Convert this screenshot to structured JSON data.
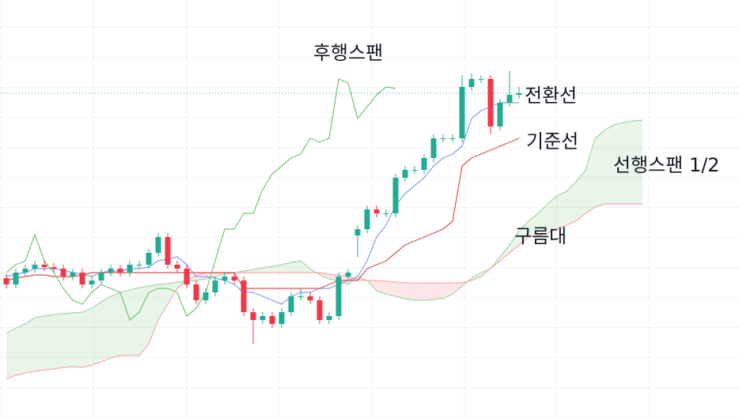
{
  "chart_data": {
    "type": "ichimoku",
    "ylim": [
      0,
      530
    ],
    "candles": {
      "up_color": "#22ab94",
      "down_color": "#f23645",
      "open": [
        178,
        170,
        185,
        190,
        195,
        192,
        190,
        180,
        185,
        170,
        175,
        185,
        190,
        185,
        195,
        195,
        210,
        230,
        195,
        190,
        170,
        150,
        160,
        175,
        180,
        175,
        135,
        125,
        130,
        120,
        135,
        155,
        155,
        150,
        125,
        130,
        180,
        232,
        240,
        265,
        260,
        260,
        305,
        315,
        315,
        330,
        355,
        355,
        355,
        420,
        430,
        430,
        370,
        400,
        410,
        null,
        null,
        null,
        null,
        null,
        null,
        null,
        null,
        null,
        null,
        null,
        null,
        null
      ],
      "high": [
        183,
        190,
        195,
        200,
        200,
        197,
        195,
        190,
        190,
        180,
        190,
        195,
        195,
        200,
        200,
        215,
        235,
        235,
        200,
        195,
        175,
        165,
        180,
        185,
        185,
        180,
        140,
        135,
        135,
        140,
        160,
        165,
        160,
        155,
        135,
        185,
        190,
        245,
        270,
        270,
        265,
        310,
        320,
        320,
        335,
        360,
        360,
        360,
        435,
        437,
        435,
        435,
        405,
        440,
        420,
        null,
        null,
        null,
        null,
        null,
        null,
        null,
        null,
        null,
        null,
        null,
        null,
        null
      ],
      "low": [
        165,
        165,
        180,
        185,
        187,
        185,
        175,
        175,
        165,
        165,
        170,
        180,
        180,
        180,
        190,
        190,
        205,
        190,
        185,
        165,
        145,
        145,
        155,
        170,
        170,
        130,
        95,
        120,
        115,
        115,
        130,
        150,
        145,
        120,
        120,
        125,
        175,
        205,
        235,
        255,
        255,
        255,
        300,
        310,
        310,
        325,
        350,
        350,
        350,
        415,
        425,
        360,
        365,
        395,
        405,
        null,
        null,
        null,
        null,
        null,
        null,
        null,
        null,
        null,
        null,
        null,
        null,
        null
      ],
      "close": [
        170,
        185,
        190,
        195,
        192,
        190,
        180,
        185,
        170,
        175,
        185,
        190,
        185,
        195,
        195,
        210,
        230,
        195,
        190,
        170,
        150,
        160,
        175,
        180,
        175,
        135,
        125,
        130,
        120,
        135,
        155,
        155,
        150,
        125,
        130,
        180,
        185,
        240,
        265,
        260,
        260,
        305,
        315,
        315,
        330,
        355,
        355,
        355,
        420,
        430,
        430,
        370,
        400,
        410,
        412,
        null,
        null,
        null,
        null,
        null,
        null,
        null,
        null,
        null,
        null,
        null,
        null,
        null
      ],
      "price_line_color": "#26a69a"
    },
    "series": [
      {
        "name": "전환선",
        "color": "#7b9ef0",
        "values": [
          180,
          183,
          185,
          190,
          190,
          190,
          188,
          185,
          183,
          180,
          185,
          187,
          187,
          190,
          190,
          192,
          200,
          202,
          205,
          195,
          180,
          180,
          178,
          175,
          170,
          160,
          160,
          155,
          150,
          145,
          155,
          160,
          160,
          165,
          165,
          170,
          175,
          180,
          200,
          230,
          245,
          270,
          285,
          295,
          305,
          320,
          330,
          335,
          345,
          380,
          390,
          395,
          400,
          400,
          400,
          null,
          null,
          null,
          null,
          null,
          null,
          null,
          null,
          null,
          null,
          null,
          null,
          null
        ]
      },
      {
        "name": "기준선",
        "color": "#d9534f",
        "values": [
          175,
          178,
          180,
          182,
          182,
          180,
          180,
          180,
          182,
          185,
          185,
          185,
          185,
          185,
          185,
          185,
          185,
          185,
          185,
          185,
          185,
          185,
          185,
          185,
          185,
          165,
          165,
          165,
          165,
          165,
          165,
          165,
          165,
          165,
          170,
          175,
          175,
          175,
          190,
          195,
          200,
          210,
          220,
          225,
          230,
          235,
          240,
          250,
          320,
          330,
          335,
          340,
          345,
          350,
          355,
          null,
          null,
          null,
          null,
          null,
          null,
          null,
          null,
          null,
          null,
          null,
          null,
          null
        ]
      },
      {
        "name": "후행스팬",
        "color": "#72c472",
        "values": [
          185,
          195,
          200,
          233,
          200,
          185,
          165,
          150,
          145,
          160,
          170,
          165,
          160,
          125,
          135,
          160,
          165,
          165,
          160,
          130,
          140,
          160,
          200,
          240,
          240,
          260,
          260,
          290,
          310,
          320,
          330,
          335,
          355,
          350,
          355,
          430,
          425,
          380,
          395,
          410,
          420,
          418,
          null,
          null,
          null,
          null,
          null,
          null,
          null,
          null,
          null,
          null,
          null,
          null,
          null,
          null,
          null,
          null,
          null,
          null,
          null,
          null,
          null,
          null,
          null,
          null,
          null,
          null
        ]
      }
    ],
    "leading_span": {
      "name": "선행스팬 1/2",
      "a_color": "#a5d6a7",
      "b_color": "#f7a9a9",
      "a": [
        108,
        115,
        120,
        128,
        130,
        132,
        133,
        134,
        135,
        140,
        148,
        155,
        160,
        163,
        166,
        168,
        170,
        171,
        173,
        174,
        175,
        177,
        180,
        183,
        185,
        187,
        189,
        191,
        193,
        195,
        198,
        200,
        190,
        182,
        177,
        174,
        170,
        180,
        175,
        162,
        158,
        155,
        152,
        150,
        150,
        151,
        152,
        158,
        168,
        178,
        185,
        190,
        205,
        220,
        238,
        250,
        260,
        272,
        282,
        288,
        300,
        315,
        355,
        365,
        372,
        375,
        377,
        378
      ],
      "b": [
        50,
        55,
        58,
        60,
        62,
        63,
        65,
        66,
        65,
        68,
        72,
        77,
        80,
        80,
        80,
        95,
        125,
        145,
        165,
        175,
        182,
        185,
        185,
        185,
        185,
        185,
        185,
        185,
        185,
        185,
        185,
        185,
        185,
        185,
        183,
        182,
        180,
        176,
        175,
        175,
        174,
        173,
        172,
        172,
        172,
        172,
        172,
        172,
        172,
        175,
        180,
        190,
        200,
        210,
        220,
        230,
        232,
        235,
        240,
        245,
        250,
        260,
        268,
        272,
        272,
        272,
        272,
        272
      ]
    },
    "cloud": {
      "name": "구름대",
      "up_color": "rgba(76,175,80,0.13)",
      "down_color": "rgba(242,54,69,0.12)"
    }
  }
}
